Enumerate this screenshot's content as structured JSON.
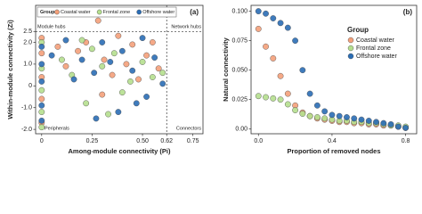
{
  "chart_data": [
    {
      "type": "scatter",
      "panel_label": "(a)",
      "x_label": "Among-module connectivity (Pi)",
      "y_label": "Within-module connectivity (Zi)",
      "annotations": [
        "Module hubs",
        "Network hubs",
        "Peripherals",
        "Connectors"
      ],
      "legend_title": "Group",
      "legend": "top-left",
      "xlim": [
        -0.03,
        0.8
      ],
      "xticks": [
        0,
        0.25,
        {
          "value": 0.5,
          "label": "0.50"
        },
        0.62,
        0.75
      ],
      "ylim": [
        -2.2,
        3.7
      ],
      "yticks": [
        {
          "value": -2,
          "label": "-2.0"
        },
        {
          "value": -1,
          "label": "-1.0"
        },
        0,
        {
          "value": 1,
          "label": "1.0"
        },
        {
          "value": 2,
          "label": "2.0"
        },
        2.5
      ],
      "hline": 2.5,
      "vline": 0.62,
      "series": [
        {
          "name": "Coastal water",
          "color": "#f4a07a",
          "x": [
            0,
            0,
            0,
            0,
            0,
            0.08,
            0.12,
            0.18,
            0.22,
            0.28,
            0.31,
            0.35,
            0.38,
            0.42,
            0.45,
            0.48,
            0.52,
            0.55,
            0.58,
            0.3
          ],
          "values": [
            2.2,
            1.5,
            0.4,
            -0.6,
            -1.7,
            1.8,
            0.9,
            1.6,
            2.0,
            3.0,
            1.2,
            0.5,
            2.3,
            1.0,
            1.9,
            0.3,
            1.4,
            2.0,
            0.8,
            -0.4
          ]
        },
        {
          "name": "Frontal zone",
          "color": "#b5df8e",
          "x": [
            0,
            0,
            0,
            0,
            0,
            0.1,
            0.15,
            0.2,
            0.25,
            0.3,
            0.36,
            0.4,
            0.44,
            0.5,
            0.55,
            0.6,
            0.22,
            0.33
          ],
          "values": [
            2.0,
            0.8,
            -0.2,
            -1.2,
            -1.9,
            1.2,
            0.5,
            2.1,
            1.7,
            0.9,
            1.5,
            -0.3,
            0.2,
            1.1,
            0.4,
            0.6,
            -0.8,
            -1.3
          ]
        },
        {
          "name": "Offshore water",
          "color": "#2a6db5",
          "x": [
            0,
            0,
            0,
            0,
            0,
            0.05,
            0.12,
            0.16,
            0.2,
            0.26,
            0.3,
            0.34,
            0.4,
            0.45,
            0.5,
            0.52,
            0.56,
            0.6,
            0.38,
            0.47,
            0.27
          ],
          "values": [
            1.8,
            1.0,
            0.2,
            -0.9,
            -1.6,
            1.4,
            2.1,
            0.3,
            1.2,
            0.6,
            2.0,
            1.1,
            1.6,
            0.7,
            2.2,
            -0.5,
            1.3,
            0.1,
            -1.2,
            -0.8,
            -1.5
          ]
        }
      ]
    },
    {
      "type": "scatter",
      "panel_label": "(b)",
      "x_label": "Proportion of removed nodes",
      "y_label": "Natural connectivity",
      "legend_title": "Group",
      "legend": "right",
      "xlim": [
        -0.04,
        0.86
      ],
      "xticks": [
        {
          "value": 0,
          "label": "0.0"
        },
        0.4,
        0.8
      ],
      "ylim": [
        -0.004,
        0.105
      ],
      "yticks": [
        {
          "value": 0,
          "label": "0.00"
        },
        0.025,
        {
          "value": 0.05,
          "label": "0.050"
        },
        0.075,
        {
          "value": 0.1,
          "label": "0.100"
        }
      ],
      "series": [
        {
          "name": "Coastal water",
          "color": "#f4a07a",
          "x": [
            0,
            0.04,
            0.08,
            0.12,
            0.16,
            0.2,
            0.24,
            0.28,
            0.32,
            0.36,
            0.4,
            0.44,
            0.48,
            0.52,
            0.56,
            0.6,
            0.64,
            0.68,
            0.72,
            0.76,
            0.8
          ],
          "values": [
            0.085,
            0.07,
            0.06,
            0.045,
            0.03,
            0.02,
            0.014,
            0.011,
            0.009,
            0.008,
            0.007,
            0.006,
            0.006,
            0.005,
            0.005,
            0.004,
            0.004,
            0.003,
            0.003,
            0.002,
            0.001
          ]
        },
        {
          "name": "Frontal zone",
          "color": "#b5df8e",
          "x": [
            0,
            0.04,
            0.08,
            0.12,
            0.16,
            0.2,
            0.24,
            0.28,
            0.32,
            0.36,
            0.4,
            0.44,
            0.48,
            0.52,
            0.56,
            0.6,
            0.64,
            0.68,
            0.72,
            0.76,
            0.8
          ],
          "values": [
            0.028,
            0.027,
            0.026,
            0.025,
            0.021,
            0.016,
            0.013,
            0.011,
            0.01,
            0.009,
            0.008,
            0.007,
            0.007,
            0.006,
            0.006,
            0.005,
            0.005,
            0.004,
            0.003,
            0.003,
            0.002
          ]
        },
        {
          "name": "Offshore water",
          "color": "#2a6db5",
          "x": [
            0,
            0.04,
            0.08,
            0.12,
            0.16,
            0.2,
            0.24,
            0.28,
            0.32,
            0.36,
            0.4,
            0.44,
            0.48,
            0.52,
            0.56,
            0.6,
            0.64,
            0.68,
            0.72,
            0.76,
            0.8
          ],
          "values": [
            0.1,
            0.098,
            0.094,
            0.09,
            0.086,
            0.075,
            0.05,
            0.03,
            0.02,
            0.015,
            0.012,
            0.011,
            0.01,
            0.009,
            0.008,
            0.007,
            0.006,
            0.005,
            0.004,
            0.002,
            0.001
          ]
        }
      ]
    }
  ]
}
